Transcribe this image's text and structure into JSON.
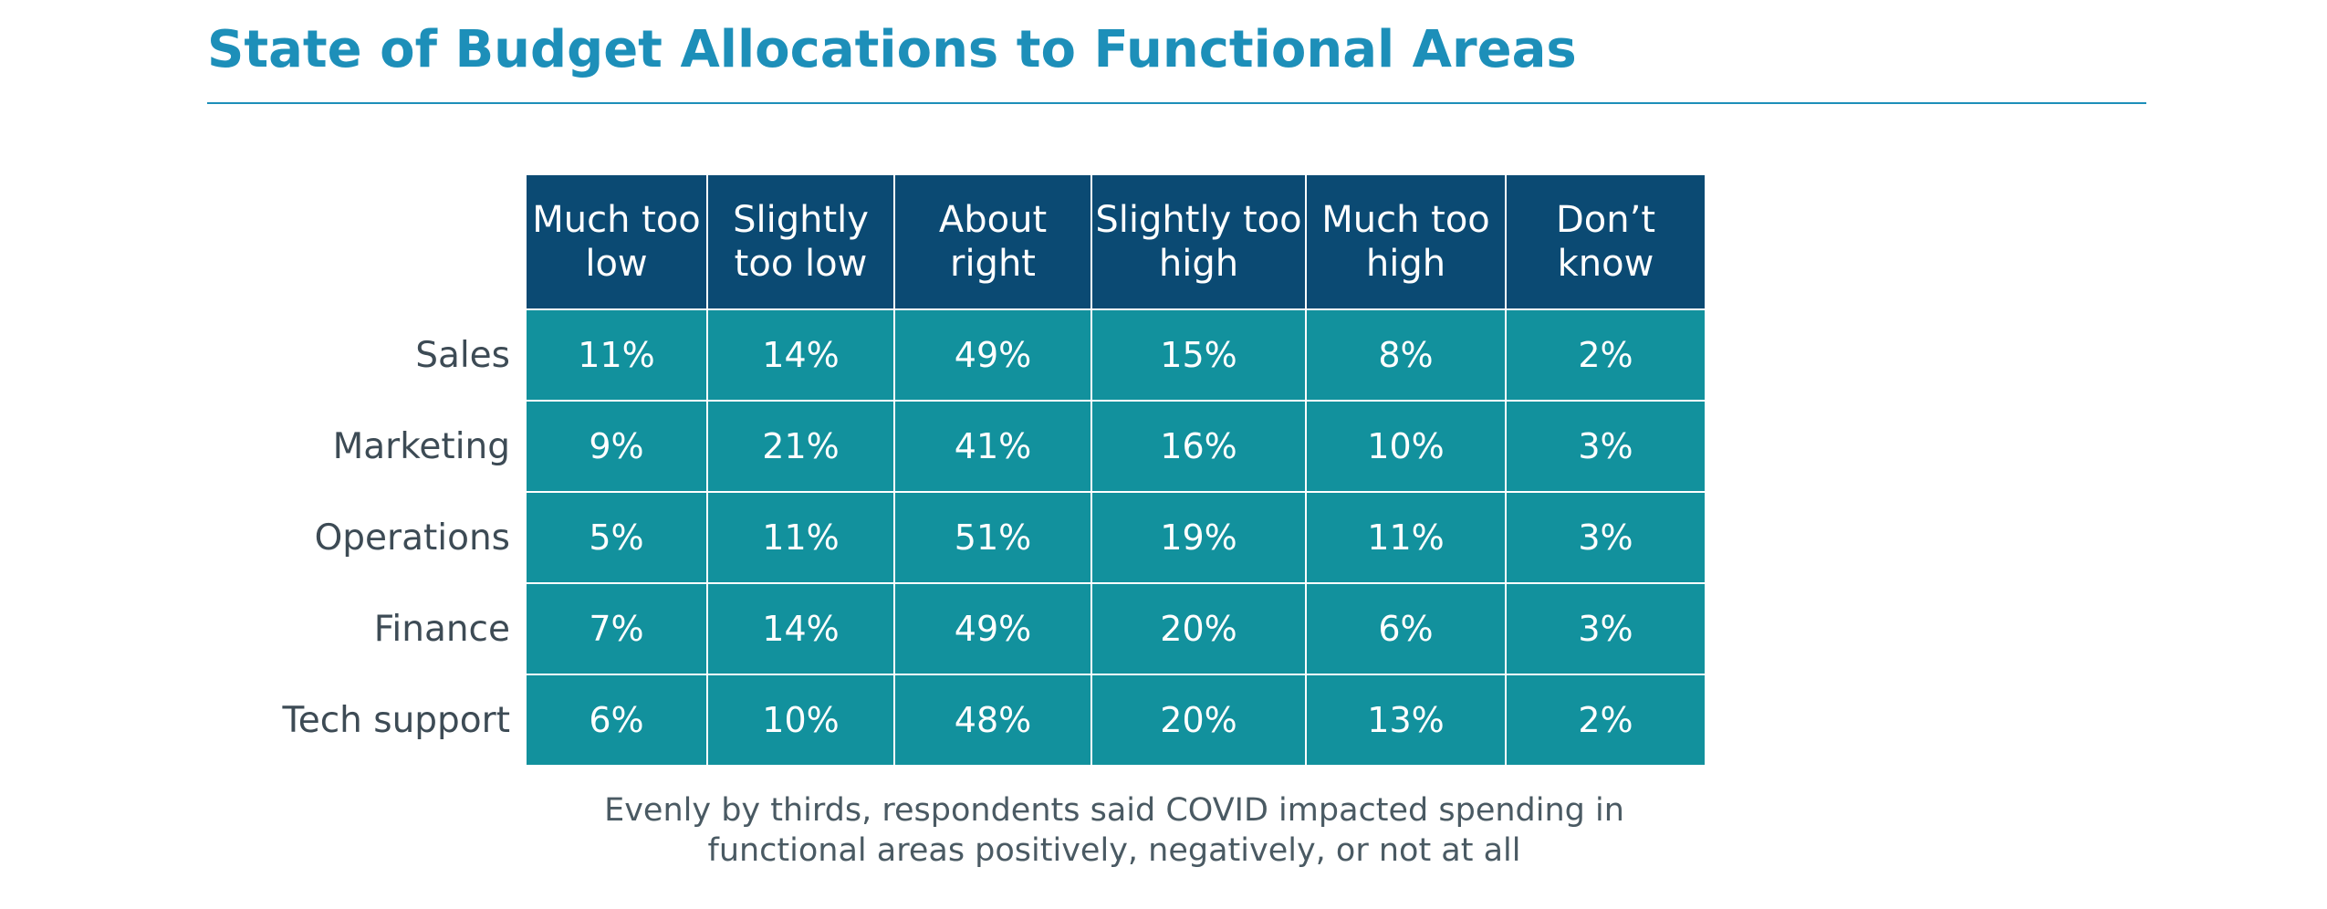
{
  "title": "State of Budget Allocations to Functional Areas",
  "table": {
    "columns": [
      "Much too low",
      "Slightly too low",
      "About right",
      "Slightly too high",
      "Much too high",
      "Don’t know"
    ],
    "rows": [
      {
        "label": "Sales",
        "cells": [
          "11%",
          "14%",
          "49%",
          "15%",
          "8%",
          "2%"
        ]
      },
      {
        "label": "Marketing",
        "cells": [
          "9%",
          "21%",
          "41%",
          "16%",
          "10%",
          "3%"
        ]
      },
      {
        "label": "Operations",
        "cells": [
          "5%",
          "11%",
          "51%",
          "19%",
          "11%",
          "3%"
        ]
      },
      {
        "label": "Finance",
        "cells": [
          "7%",
          "14%",
          "49%",
          "20%",
          "6%",
          "3%"
        ]
      },
      {
        "label": "Tech support",
        "cells": [
          "6%",
          "10%",
          "48%",
          "20%",
          "13%",
          "2%"
        ]
      }
    ]
  },
  "caption": [
    "Evenly by thirds, respondents said COVID impacted spending in",
    "functional areas positively, negatively, or not at all"
  ]
}
